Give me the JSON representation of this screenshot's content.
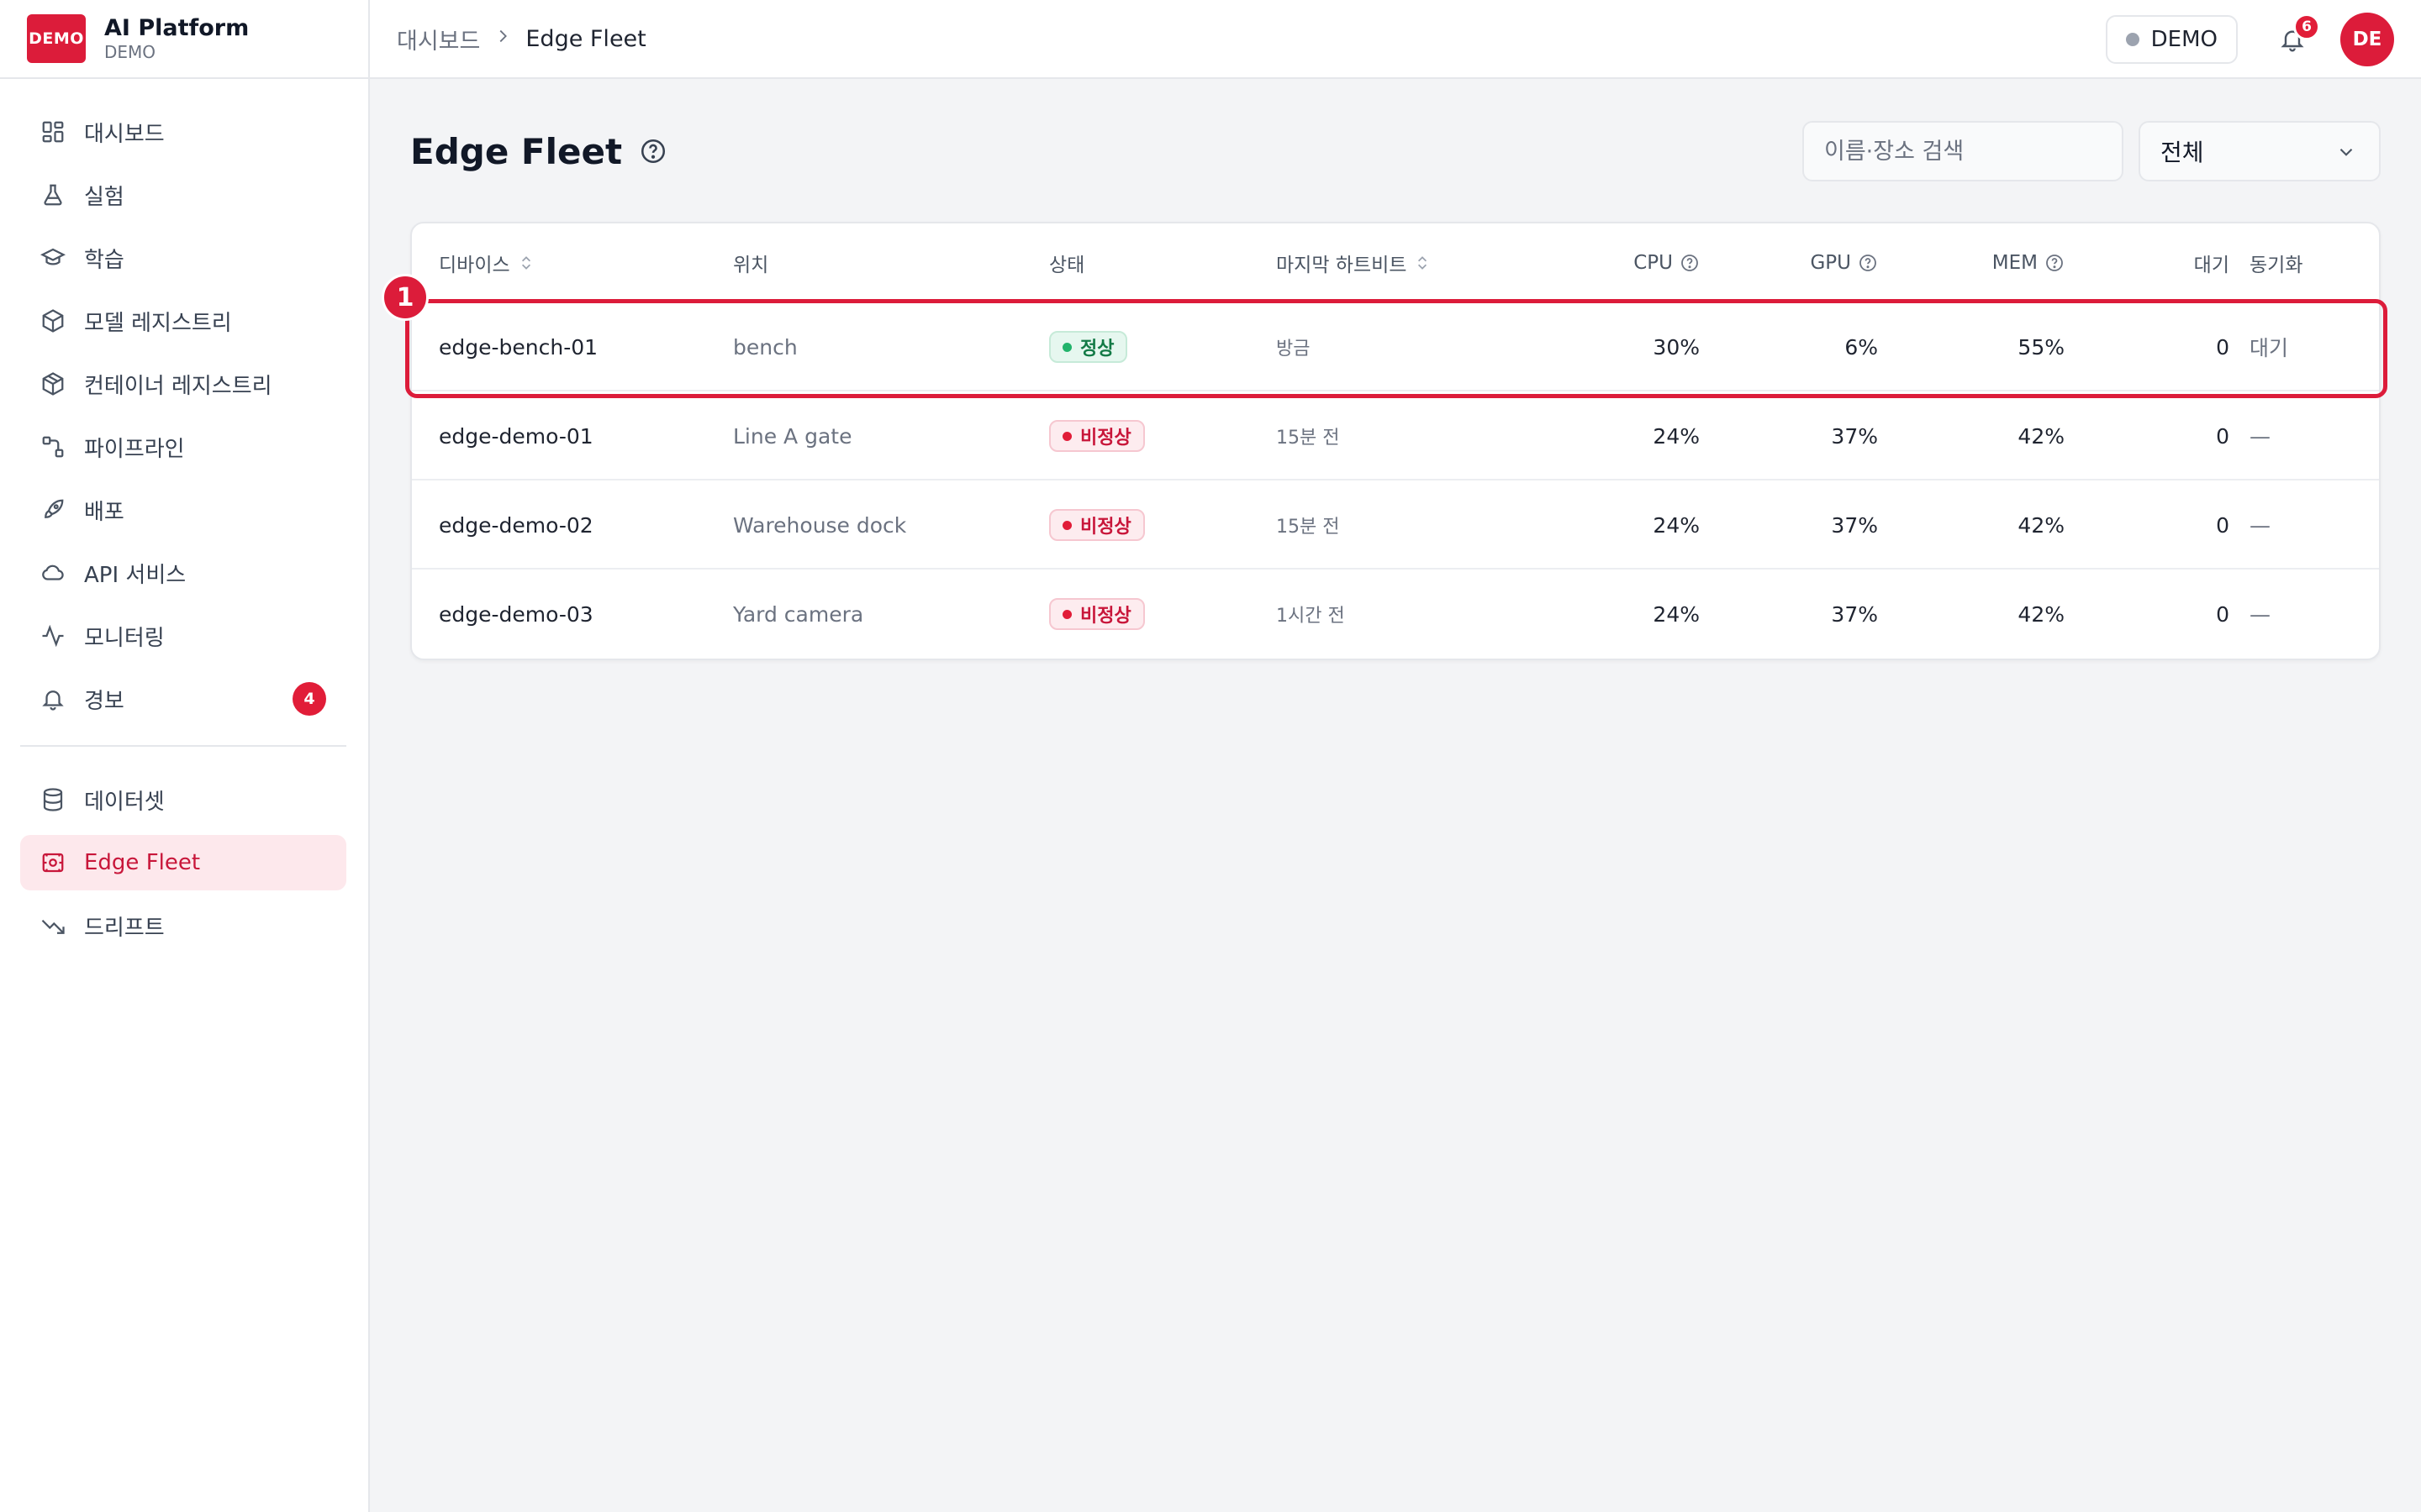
{
  "brand": {
    "logo_text": "DEMO",
    "title": "AI Platform",
    "subtitle": "DEMO"
  },
  "sidebar": {
    "items": [
      {
        "label": "대시보드",
        "icon": "dashboard-icon"
      },
      {
        "label": "실험",
        "icon": "flask-icon"
      },
      {
        "label": "학습",
        "icon": "graduation-cap-icon"
      },
      {
        "label": "모델 레지스트리",
        "icon": "cube-icon"
      },
      {
        "label": "컨테이너 레지스트리",
        "icon": "package-icon"
      },
      {
        "label": "파이프라인",
        "icon": "pipeline-icon"
      },
      {
        "label": "배포",
        "icon": "rocket-icon"
      },
      {
        "label": "API 서비스",
        "icon": "cloud-icon"
      },
      {
        "label": "모니터링",
        "icon": "activity-icon"
      },
      {
        "label": "경보",
        "icon": "bell-icon",
        "badge": "4"
      }
    ],
    "items2": [
      {
        "label": "데이터셋",
        "icon": "database-icon"
      },
      {
        "label": "Edge Fleet",
        "icon": "edge-device-icon",
        "active": true
      },
      {
        "label": "드리프트",
        "icon": "trend-down-icon"
      }
    ]
  },
  "topbar": {
    "breadcrumb_parent": "대시보드",
    "breadcrumb_current": "Edge Fleet",
    "env_label": "DEMO",
    "notification_count": "6",
    "avatar_initials": "DE"
  },
  "page": {
    "title": "Edge Fleet",
    "search_placeholder": "이름·장소 검색",
    "filter_value": "전체"
  },
  "table": {
    "columns": {
      "device": "디바이스",
      "location": "위치",
      "status": "상태",
      "heartbeat": "마지막 하트비트",
      "cpu": "CPU",
      "gpu": "GPU",
      "mem": "MEM",
      "pending": "대기",
      "sync": "동기화"
    },
    "rows": [
      {
        "device": "edge-bench-01",
        "location": "bench",
        "status": "정상",
        "status_kind": "ok",
        "heartbeat": "방금",
        "cpu": "30%",
        "gpu": "6%",
        "mem": "55%",
        "pending": "0",
        "sync": "대기"
      },
      {
        "device": "edge-demo-01",
        "location": "Line A gate",
        "status": "비정상",
        "status_kind": "bad",
        "heartbeat": "15분 전",
        "cpu": "24%",
        "gpu": "37%",
        "mem": "42%",
        "pending": "0",
        "sync": "—"
      },
      {
        "device": "edge-demo-02",
        "location": "Warehouse dock",
        "status": "비정상",
        "status_kind": "bad",
        "heartbeat": "15분 전",
        "cpu": "24%",
        "gpu": "37%",
        "mem": "42%",
        "pending": "0",
        "sync": "—"
      },
      {
        "device": "edge-demo-03",
        "location": "Yard camera",
        "status": "비정상",
        "status_kind": "bad",
        "heartbeat": "1시간 전",
        "cpu": "24%",
        "gpu": "37%",
        "mem": "42%",
        "pending": "0",
        "sync": "—"
      }
    ]
  },
  "annotation": {
    "marker": "1"
  },
  "colors": {
    "accent": "#dc1c3a",
    "ok": "#22b36b",
    "bad": "#e11d38"
  }
}
